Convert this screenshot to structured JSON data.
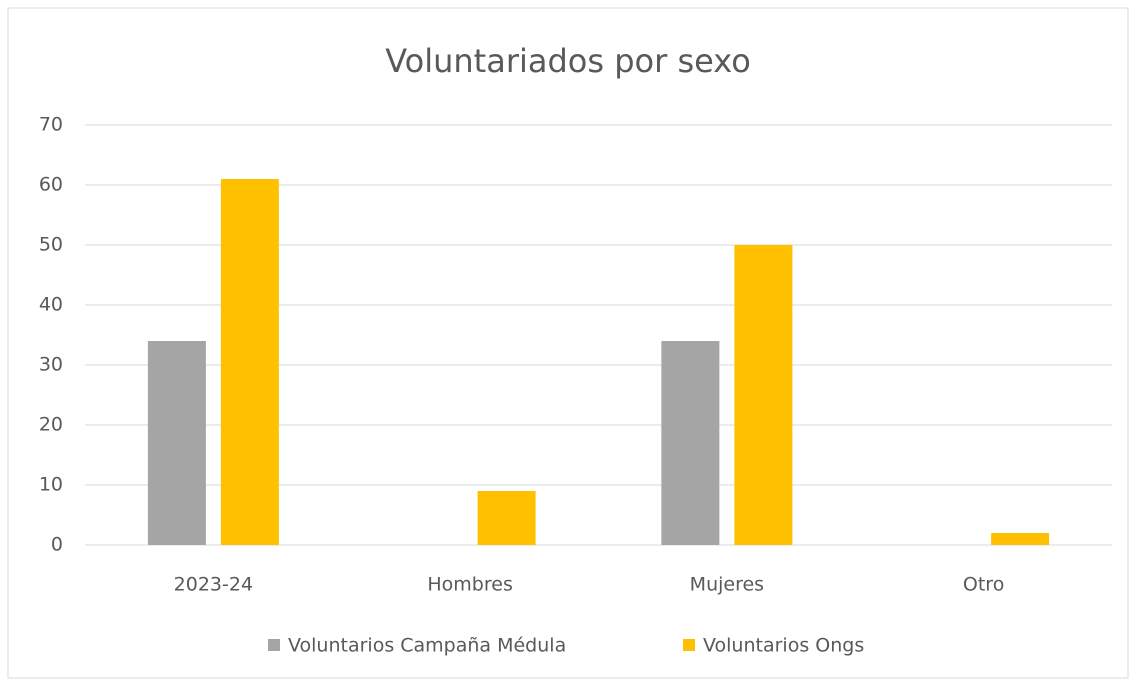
{
  "chart_data": {
    "type": "bar",
    "title": "Voluntariados por sexo",
    "categories": [
      "2023-24",
      "Hombres",
      "Mujeres",
      "Otro"
    ],
    "series": [
      {
        "name": "Voluntarios Campaña Médula",
        "color": "#a5a5a5",
        "values": [
          34,
          0,
          34,
          0
        ]
      },
      {
        "name": "Voluntarios Ongs",
        "color": "#ffc000",
        "values": [
          61,
          9,
          50,
          2
        ]
      }
    ],
    "ylim": [
      0,
      70
    ],
    "yticks": [
      0,
      10,
      20,
      30,
      40,
      50,
      60,
      70
    ],
    "grid": true,
    "legend": "bottom"
  }
}
